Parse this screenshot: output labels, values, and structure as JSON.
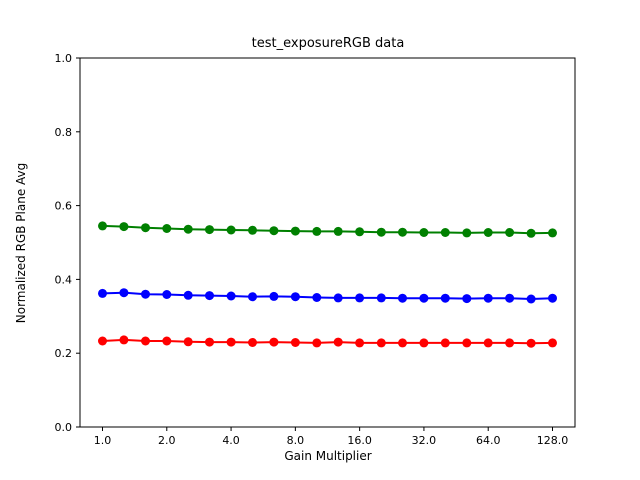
{
  "figure": {
    "background_color": "#ffffff",
    "axes_color": "#000000"
  },
  "chart_data": {
    "type": "line",
    "title": "test_exposureRGB data",
    "xlabel": "Gain Multiplier",
    "ylabel": "Normalized RGB Plane Avg",
    "xscale": "log2",
    "ylim": [
      0.0,
      1.0
    ],
    "x_margin_log2": 0.35,
    "grid": false,
    "legend": null,
    "x_ticks": [
      {
        "value": 1.0,
        "label": "1.0"
      },
      {
        "value": 2.0,
        "label": "2.0"
      },
      {
        "value": 4.0,
        "label": "4.0"
      },
      {
        "value": 8.0,
        "label": "8.0"
      },
      {
        "value": 16.0,
        "label": "16.0"
      },
      {
        "value": 32.0,
        "label": "32.0"
      },
      {
        "value": 64.0,
        "label": "64.0"
      },
      {
        "value": 128.0,
        "label": "128.0"
      }
    ],
    "y_ticks": [
      {
        "value": 0.0,
        "label": "0.0"
      },
      {
        "value": 0.2,
        "label": "0.2"
      },
      {
        "value": 0.4,
        "label": "0.4"
      },
      {
        "value": 0.6,
        "label": "0.6"
      },
      {
        "value": 0.8,
        "label": "0.8"
      },
      {
        "value": 1.0,
        "label": "1.0"
      }
    ],
    "x": [
      1.0,
      1.26,
      1.59,
      2.0,
      2.52,
      3.17,
      4.0,
      5.04,
      6.35,
      8.0,
      10.08,
      12.7,
      16.0,
      20.2,
      25.4,
      32.0,
      40.3,
      50.8,
      64.0,
      80.6,
      101.6,
      128.0
    ],
    "series": [
      {
        "name": "green",
        "color": "#008000",
        "values": [
          0.545,
          0.543,
          0.54,
          0.538,
          0.536,
          0.535,
          0.534,
          0.533,
          0.532,
          0.531,
          0.53,
          0.53,
          0.529,
          0.528,
          0.528,
          0.527,
          0.527,
          0.526,
          0.527,
          0.527,
          0.525,
          0.526
        ]
      },
      {
        "name": "blue",
        "color": "#0000ff",
        "values": [
          0.362,
          0.364,
          0.36,
          0.359,
          0.357,
          0.356,
          0.355,
          0.353,
          0.354,
          0.353,
          0.351,
          0.35,
          0.35,
          0.35,
          0.349,
          0.349,
          0.349,
          0.348,
          0.349,
          0.349,
          0.347,
          0.349
        ]
      },
      {
        "name": "red",
        "color": "#ff0000",
        "values": [
          0.233,
          0.236,
          0.233,
          0.233,
          0.231,
          0.23,
          0.23,
          0.229,
          0.23,
          0.229,
          0.228,
          0.23,
          0.228,
          0.228,
          0.228,
          0.228,
          0.228,
          0.228,
          0.228,
          0.228,
          0.227,
          0.228
        ]
      }
    ]
  }
}
